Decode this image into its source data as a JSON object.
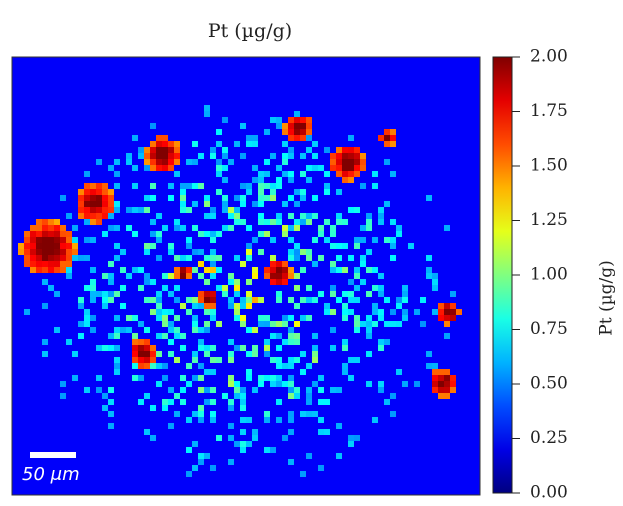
{
  "chart_data": {
    "type": "heatmap",
    "title": "Pt (µg/g)",
    "colormap": "jet",
    "colorbar": {
      "label": "Pt (µg/g)",
      "lim": [
        0,
        2
      ],
      "ticks": [
        {
          "value": 0,
          "label": "0.00"
        },
        0.25,
        {
          "value": 0.5,
          "label": "0.50"
        },
        0.75,
        {
          "value": 1,
          "label": "1.00"
        },
        1.25,
        {
          "value": 1.5,
          "label": "1.50"
        },
        1.75,
        {
          "value": 2,
          "label": "2.00"
        }
      ]
    },
    "scale_bar": "50 μm"
  }
}
